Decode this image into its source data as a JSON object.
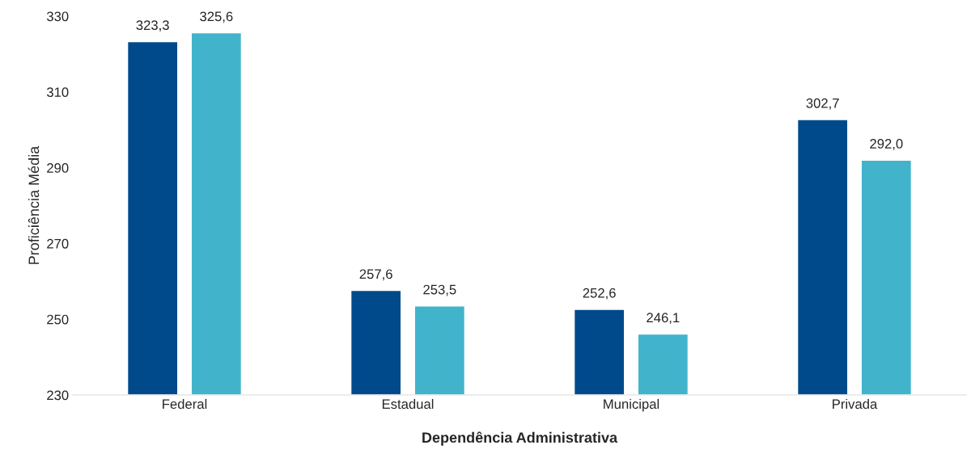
{
  "chart_data": {
    "type": "bar",
    "xlabel": "Dependência Administrativa",
    "ylabel": "Proficiência Média",
    "categories": [
      "Federal",
      "Estadual",
      "Municipal",
      "Privada"
    ],
    "series": [
      {
        "color": "#004a8c",
        "values": [
          323.3,
          257.6,
          252.6,
          302.7
        ],
        "value_labels": [
          "323,3",
          "257,6",
          "252,6",
          "302,7"
        ]
      },
      {
        "color": "#41b4cc",
        "values": [
          325.6,
          253.5,
          246.1,
          292.0
        ],
        "value_labels": [
          "325,6",
          "253,5",
          "246,1",
          "292,0"
        ]
      }
    ],
    "ylim": [
      230,
      330
    ],
    "yticks": [
      230,
      250,
      270,
      290,
      310,
      330
    ],
    "grid": false,
    "legend": false
  }
}
